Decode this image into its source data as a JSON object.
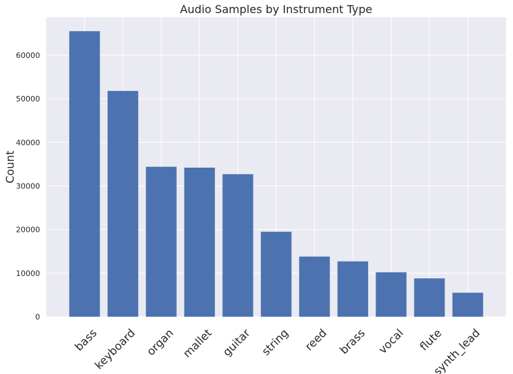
{
  "chart_data": {
    "type": "bar",
    "title": "Audio Samples by Instrument Type",
    "xlabel": "",
    "ylabel": "Count",
    "ylim": [
      0,
      68700
    ],
    "yticks": [
      0,
      10000,
      20000,
      30000,
      40000,
      50000,
      60000
    ],
    "ytick_labels": [
      "0",
      "10000",
      "20000",
      "30000",
      "40000",
      "50000",
      "60000"
    ],
    "categories": [
      "bass",
      "keyboard",
      "organ",
      "mallet",
      "guitar",
      "string",
      "reed",
      "brass",
      "vocal",
      "flute",
      "synth_lead"
    ],
    "values": [
      65500,
      51800,
      34400,
      34200,
      32700,
      19500,
      13800,
      12700,
      10200,
      8800,
      5500
    ],
    "bar_color": "#4c72b0",
    "background_color": "#eaeaf2",
    "grid": true
  }
}
